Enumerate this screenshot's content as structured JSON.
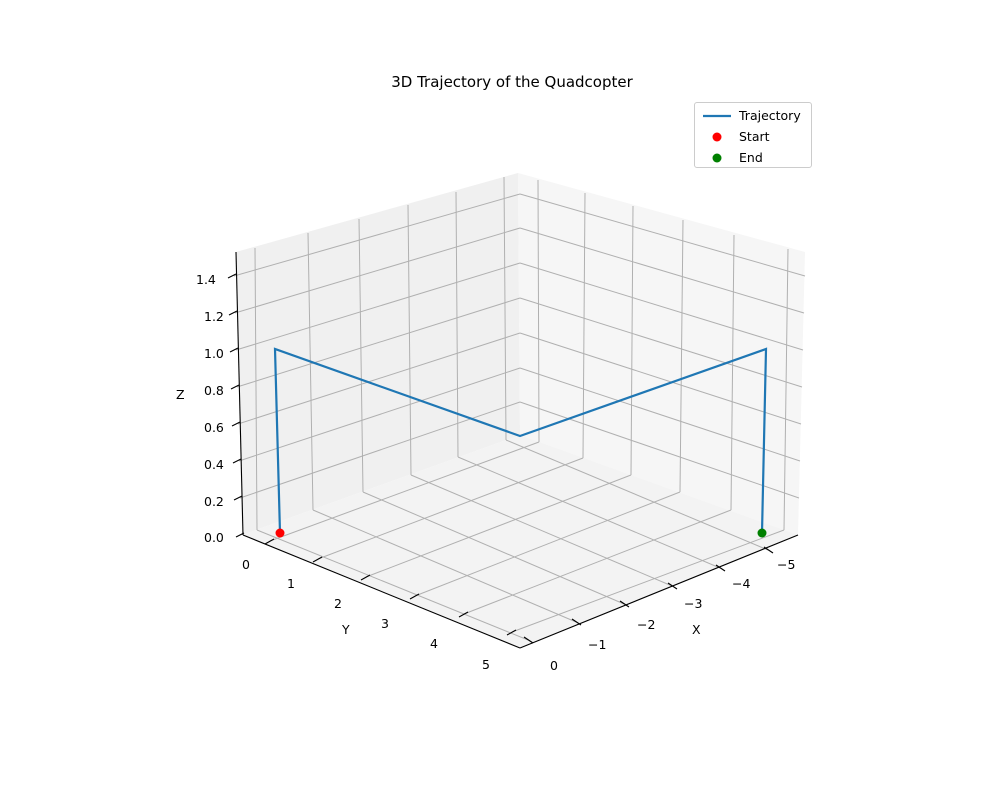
{
  "chart_data": {
    "type": "line3d",
    "title": "3D Trajectory of the Quadcopter",
    "xlabel": "X",
    "ylabel": "Y",
    "zlabel": "Z",
    "xlim": [
      0,
      -5
    ],
    "ylim": [
      0,
      5
    ],
    "zlim": [
      0,
      1.5
    ],
    "x_ticks": [
      "0",
      "−1",
      "−2",
      "−3",
      "−4",
      "−5"
    ],
    "y_ticks": [
      "0",
      "1",
      "2",
      "3",
      "4",
      "5"
    ],
    "z_ticks": [
      "0.0",
      "0.2",
      "0.4",
      "0.6",
      "0.8",
      "1.0",
      "1.2",
      "1.4"
    ],
    "grid": true,
    "legend_position": "upper right",
    "series": [
      {
        "name": "Trajectory",
        "type": "line",
        "color": "#1f77b4",
        "points": [
          {
            "x": 0,
            "y": 0,
            "z": 0
          },
          {
            "x": 0,
            "y": 0,
            "z": 1
          },
          {
            "x": 0,
            "y": 5,
            "z": 1
          },
          {
            "x": -5,
            "y": 5,
            "z": 1
          },
          {
            "x": -5,
            "y": 0,
            "z": 1
          },
          {
            "x": -5,
            "y": 0,
            "z": 0
          }
        ]
      },
      {
        "name": "Start",
        "type": "scatter",
        "color": "#ff0000",
        "points": [
          {
            "x": 0,
            "y": 0,
            "z": 0
          }
        ]
      },
      {
        "name": "End",
        "type": "scatter",
        "color": "#008000",
        "points": [
          {
            "x": -5,
            "y": 0,
            "z": 0
          }
        ]
      }
    ]
  },
  "legend": {
    "items": [
      {
        "label": "Trajectory",
        "color": "#1f77b4"
      },
      {
        "label": "Start",
        "color": "#ff0000"
      },
      {
        "label": "End",
        "color": "#008000"
      }
    ]
  }
}
